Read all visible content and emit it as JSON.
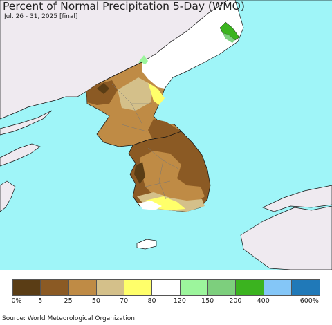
{
  "title": "Percent of Normal Precipitation 5-Day (WMO)",
  "subtitle": "Jul. 26 - 31, 2025 [final]",
  "source": "Source: World Meteorological Organization",
  "colors": {
    "ocean": "#9ff5f8",
    "land_no_data": "#efeaf0",
    "outside_land": "#ffffff"
  },
  "legend": {
    "colors": [
      "#5a3d15",
      "#8b5a24",
      "#bf8b45",
      "#d4c08a",
      "#ffff6a",
      "#ffffff",
      "#9cf59c",
      "#7dcf7d",
      "#3bb31f",
      "#84c6f7",
      "#2079b8"
    ],
    "labels": [
      "0%",
      "5",
      "25",
      "50",
      "70",
      "80",
      "120",
      "150",
      "200",
      "400",
      "600%"
    ]
  }
}
